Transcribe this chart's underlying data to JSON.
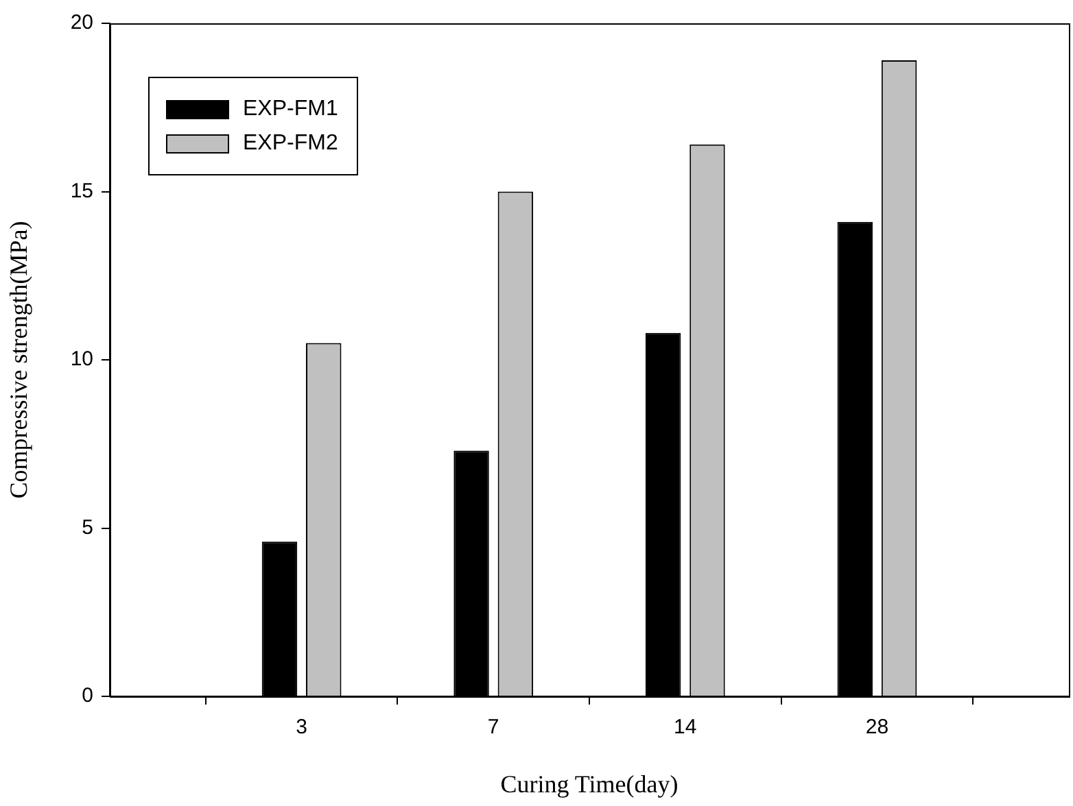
{
  "chart_data": {
    "type": "bar",
    "xlabel": "Curing Time(day)",
    "ylabel": "Compressive strength(MPa)",
    "categories": [
      "3",
      "7",
      "14",
      "28"
    ],
    "series": [
      {
        "name": "EXP-FM1",
        "color": "#000000",
        "values": [
          4.6,
          7.3,
          10.8,
          14.1
        ]
      },
      {
        "name": "EXP-FM2",
        "color": "#c0c0c0",
        "values": [
          10.5,
          15.0,
          16.4,
          18.9
        ]
      }
    ],
    "ylim": [
      0,
      20
    ],
    "yticks": [
      0,
      5,
      10,
      15,
      20
    ],
    "grid": false,
    "legend": "top left"
  }
}
